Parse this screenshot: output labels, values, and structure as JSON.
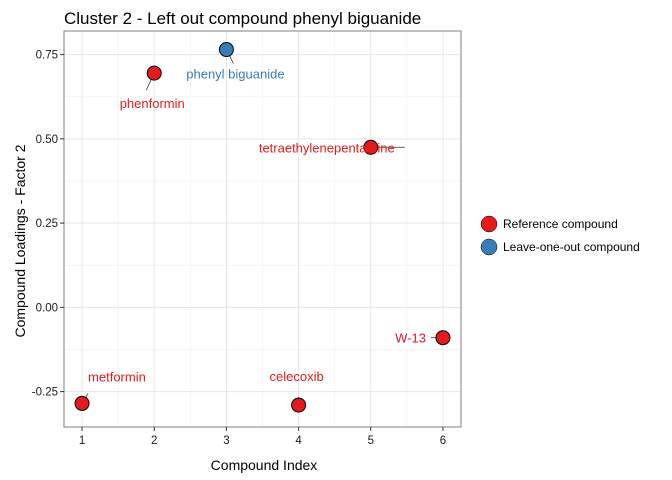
{
  "chart_data": {
    "type": "scatter",
    "title": "Cluster 2 - Left out compound phenyl biguanide",
    "xlabel": "Compound Index",
    "ylabel": "Compound Loadings - Factor 2",
    "xlim": [
      0.75,
      6.25
    ],
    "ylim": [
      -0.355,
      0.82
    ],
    "x_ticks": [
      1,
      2,
      3,
      4,
      5,
      6
    ],
    "x_tick_labels": [
      "1",
      "2",
      "3",
      "4",
      "5",
      "6"
    ],
    "y_ticks": [
      -0.25,
      0,
      0.25,
      0.5,
      0.75
    ],
    "y_tick_labels": [
      "-0.25",
      "0.00",
      "0.25",
      "0.50",
      "0.75"
    ],
    "grid": true,
    "legend_position": "right",
    "legend": [
      {
        "label": "Reference compound",
        "color": "#e41a1c"
      },
      {
        "label": "Leave-one-out compound",
        "color": "#377eb8"
      }
    ],
    "points": [
      {
        "x": 1,
        "y": -0.285,
        "label": "metformin",
        "group": "Reference compound"
      },
      {
        "x": 2,
        "y": 0.695,
        "label": "phenformin",
        "group": "Reference compound"
      },
      {
        "x": 3,
        "y": 0.765,
        "label": "phenyl biguanide",
        "group": "Leave-one-out compound"
      },
      {
        "x": 4,
        "y": -0.29,
        "label": "celecoxib",
        "group": "Reference compound"
      },
      {
        "x": 5,
        "y": 0.475,
        "label": "tetraethylenepentamine",
        "group": "Reference compound"
      },
      {
        "x": 6,
        "y": -0.09,
        "label": "W-13",
        "group": "Reference compound"
      }
    ],
    "colors": {
      "Reference compound": "#e41a1c",
      "Leave-one-out compound": "#377eb8"
    }
  }
}
